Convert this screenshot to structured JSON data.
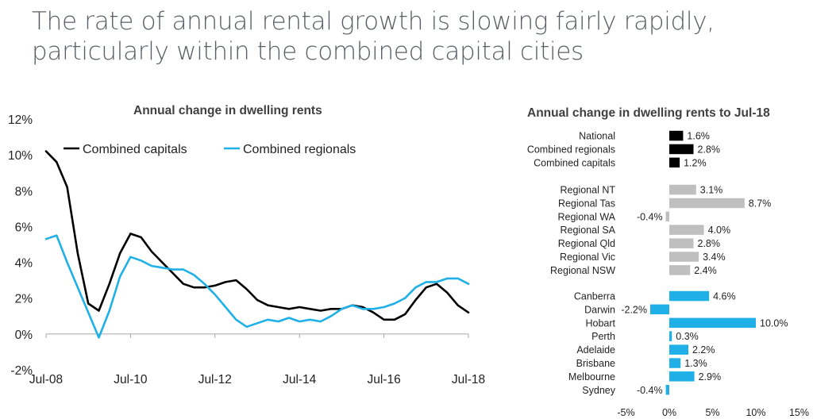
{
  "slide": {
    "title_line1": "The rate of annual rental growth is slowing fairly rapidly,",
    "title_line2": "particularly within the combined capital cities"
  },
  "colors": {
    "capitals": "#000000",
    "regionals": "#1fb0e8",
    "bar_black": "#000000",
    "bar_grey": "#bfbfbf",
    "bar_blue": "#1fb0e8"
  },
  "chart_data": [
    {
      "type": "line",
      "title": "Annual change in dwelling rents",
      "x_tick_labels": [
        "Jul-08",
        "Jul-10",
        "Jul-12",
        "Jul-14",
        "Jul-16",
        "Jul-18"
      ],
      "y_tick_labels": [
        "-2%",
        "0%",
        "2%",
        "4%",
        "6%",
        "8%",
        "10%",
        "12%"
      ],
      "ylim": [
        -2,
        12
      ],
      "xlim": [
        "Jul-08",
        "Jul-18"
      ],
      "legend_position": "top-left",
      "series": [
        {
          "name": "Combined capitals",
          "x": [
            "Jul-08",
            "Oct-08",
            "Jan-09",
            "Apr-09",
            "Jul-09",
            "Oct-09",
            "Jan-10",
            "Apr-10",
            "Jul-10",
            "Oct-10",
            "Jan-11",
            "Apr-11",
            "Jul-11",
            "Oct-11",
            "Jan-12",
            "Apr-12",
            "Jul-12",
            "Oct-12",
            "Jan-13",
            "Apr-13",
            "Jul-13",
            "Oct-13",
            "Jan-14",
            "Apr-14",
            "Jul-14",
            "Oct-14",
            "Jan-15",
            "Apr-15",
            "Jul-15",
            "Oct-15",
            "Jan-16",
            "Apr-16",
            "Jul-16",
            "Oct-16",
            "Jan-17",
            "Apr-17",
            "Jul-17",
            "Oct-17",
            "Jan-18",
            "Apr-18",
            "Jul-18"
          ],
          "values": [
            10.2,
            9.6,
            8.2,
            4.5,
            1.7,
            1.3,
            2.8,
            4.5,
            5.6,
            5.4,
            4.6,
            4.0,
            3.4,
            2.8,
            2.6,
            2.6,
            2.7,
            2.9,
            3.0,
            2.5,
            1.9,
            1.6,
            1.5,
            1.4,
            1.5,
            1.4,
            1.3,
            1.4,
            1.4,
            1.6,
            1.5,
            1.2,
            0.8,
            0.8,
            1.1,
            1.9,
            2.6,
            2.8,
            2.3,
            1.6,
            1.2
          ]
        },
        {
          "name": "Combined regionals",
          "x": [
            "Jul-08",
            "Oct-08",
            "Jan-09",
            "Apr-09",
            "Jul-09",
            "Oct-09",
            "Jan-10",
            "Apr-10",
            "Jul-10",
            "Oct-10",
            "Jan-11",
            "Apr-11",
            "Jul-11",
            "Oct-11",
            "Jan-12",
            "Apr-12",
            "Jul-12",
            "Oct-12",
            "Jan-13",
            "Apr-13",
            "Jul-13",
            "Oct-13",
            "Jan-14",
            "Apr-14",
            "Jul-14",
            "Oct-14",
            "Jan-15",
            "Apr-15",
            "Jul-15",
            "Oct-15",
            "Jan-16",
            "Apr-16",
            "Jul-16",
            "Oct-16",
            "Jan-17",
            "Apr-17",
            "Jul-17",
            "Oct-17",
            "Jan-18",
            "Apr-18",
            "Jul-18"
          ],
          "values": [
            5.3,
            5.5,
            4.0,
            2.6,
            1.2,
            -0.2,
            1.3,
            3.2,
            4.3,
            4.1,
            3.8,
            3.7,
            3.6,
            3.6,
            3.3,
            2.8,
            2.2,
            1.5,
            0.8,
            0.4,
            0.6,
            0.8,
            0.7,
            0.9,
            0.7,
            0.8,
            0.7,
            1.0,
            1.4,
            1.6,
            1.4,
            1.4,
            1.5,
            1.7,
            2.0,
            2.6,
            2.9,
            2.9,
            3.1,
            3.1,
            2.8
          ]
        }
      ]
    },
    {
      "type": "bar",
      "orientation": "horizontal",
      "title": "Annual change in dwelling rents to Jul-18",
      "x_tick_labels": [
        "-5%",
        "0%",
        "5%",
        "10%",
        "15%"
      ],
      "xlim": [
        -5,
        15
      ],
      "groups": [
        {
          "color": "black",
          "categories": [
            "National",
            "Combined regionals",
            "Combined capitals"
          ],
          "values": [
            1.6,
            2.8,
            1.2
          ],
          "labels": [
            "1.6%",
            "2.8%",
            "1.2%"
          ]
        },
        {
          "color": "grey",
          "categories": [
            "Regional NT",
            "Regional Tas",
            "Regional WA",
            "Regional SA",
            "Regional Qld",
            "Regional Vic",
            "Regional NSW"
          ],
          "values": [
            3.1,
            8.7,
            -0.4,
            4.0,
            2.8,
            3.4,
            2.4
          ],
          "labels": [
            "3.1%",
            "8.7%",
            "-0.4%",
            "4.0%",
            "2.8%",
            "3.4%",
            "2.4%"
          ]
        },
        {
          "color": "blue",
          "categories": [
            "Canberra",
            "Darwin",
            "Hobart",
            "Perth",
            "Adelaide",
            "Brisbane",
            "Melbourne",
            "Sydney"
          ],
          "values": [
            4.6,
            -2.2,
            10.0,
            0.3,
            2.2,
            1.3,
            2.9,
            -0.4
          ],
          "labels": [
            "4.6%",
            "-2.2%",
            "10.0%",
            "0.3%",
            "2.2%",
            "1.3%",
            "2.9%",
            "-0.4%"
          ]
        }
      ]
    }
  ]
}
